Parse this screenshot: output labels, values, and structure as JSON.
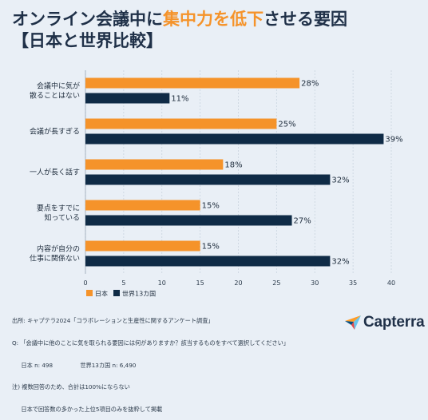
{
  "title": {
    "part1": "オンライン会議中に",
    "highlight": "集中力を低下",
    "part2": "させる要因",
    "line2": "【日本と世界比較】"
  },
  "colors": {
    "japan": "#f5932a",
    "world": "#0f2b46",
    "accent": "#f5932a"
  },
  "chart_data": {
    "type": "bar",
    "orientation": "horizontal",
    "categories": [
      [
        "会議中に気が",
        "散ることはない"
      ],
      [
        "会議が長すぎる"
      ],
      [
        "一人が長く話す"
      ],
      [
        "要点をすでに",
        "知っている"
      ],
      [
        "内容が自分の",
        "仕事に関係ない"
      ]
    ],
    "series": [
      {
        "name": "日本",
        "values": [
          28,
          25,
          18,
          15,
          15
        ]
      },
      {
        "name": "世界13カ国",
        "values": [
          11,
          39,
          32,
          27,
          32
        ]
      }
    ],
    "value_suffix": "%",
    "xlim": [
      0,
      40
    ],
    "xticks": [
      0,
      5,
      10,
      15,
      20,
      25,
      30,
      35,
      40
    ],
    "grid": true,
    "legend_position": "bottom-left"
  },
  "notes": [
    "出所: キャプテラ2024「コラボレーションと生産性に関するアンケート調査」",
    "Q: 「会議中に他のことに気を取られる要因には何がありますか？該当するものをすべて選択してください」",
    "     日本 n: 498               世界13カ国 n: 6,490",
    "注) 複数回答のため、合計は100%にならない",
    "     日本で回答数の多かった上位5項目のみを抜粋して掲載"
  ],
  "logo": {
    "text": "Capterra",
    "icon": "capterra-arrow-icon"
  }
}
